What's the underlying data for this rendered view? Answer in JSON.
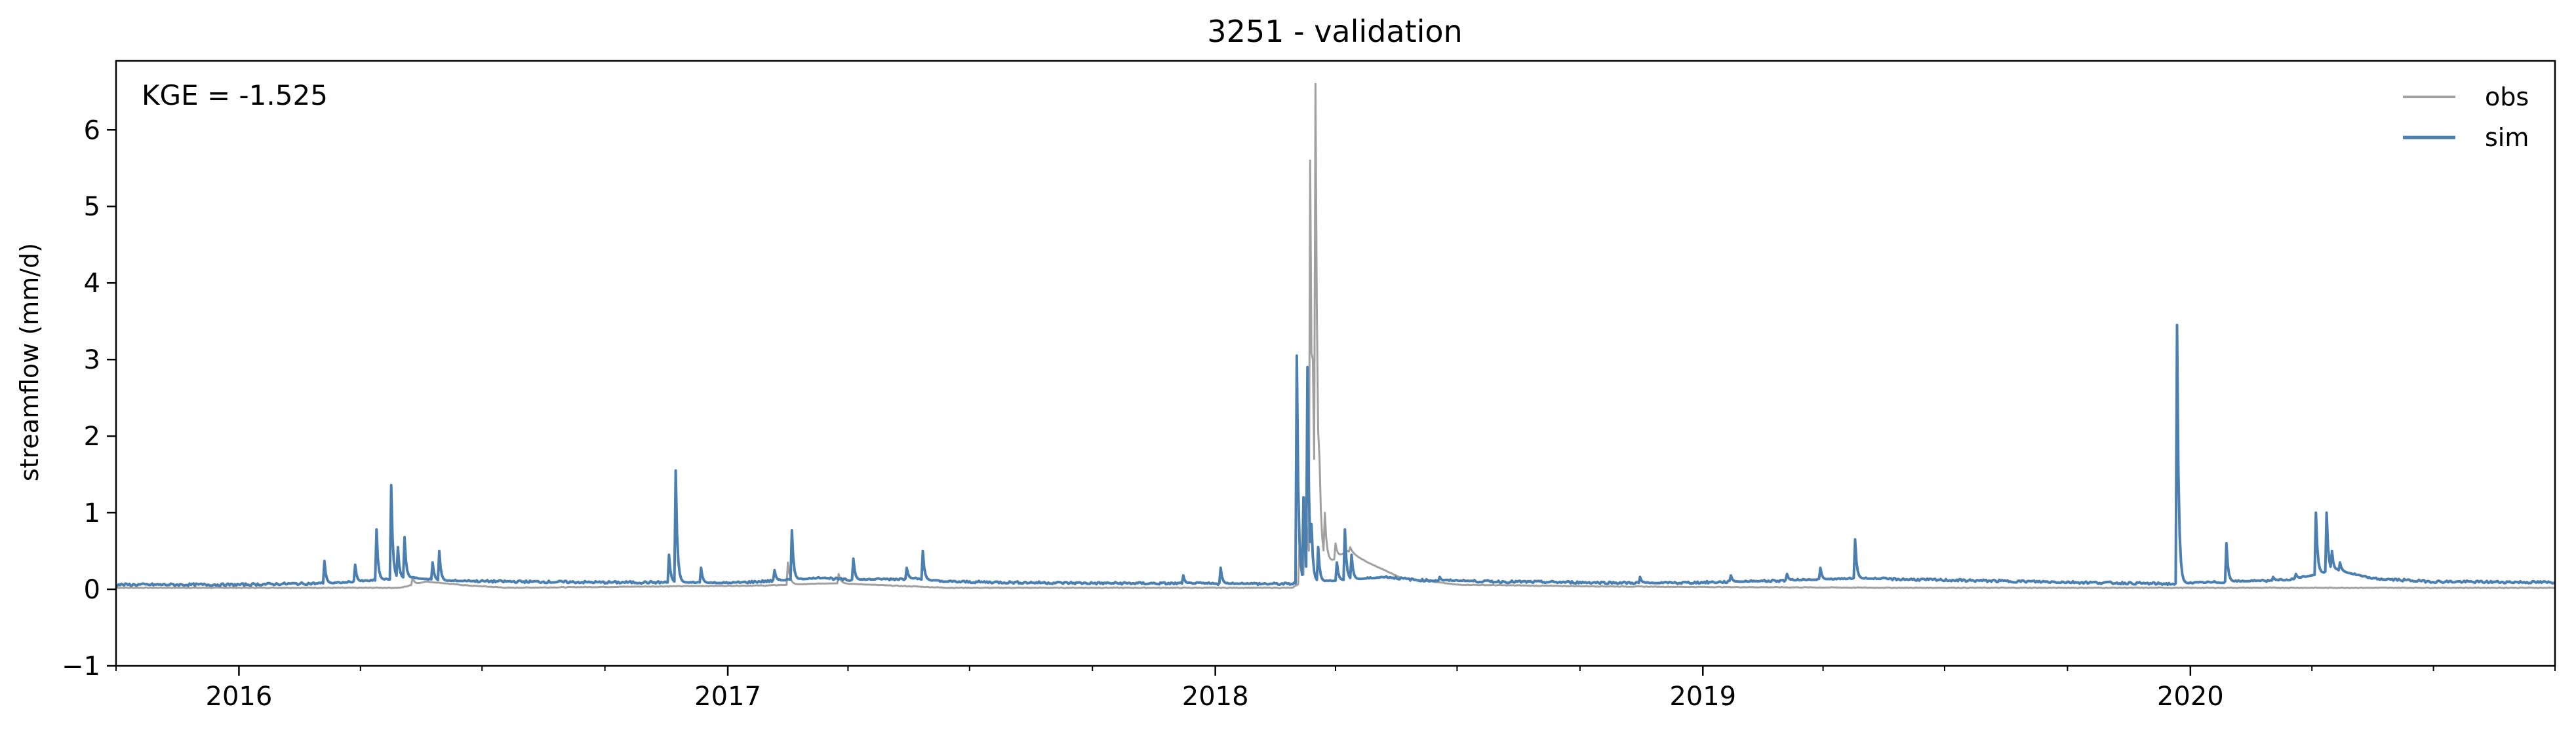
{
  "chart_data": {
    "type": "line",
    "title": "3251 - validation",
    "xlabel": "",
    "ylabel": "streamflow (mm/d)",
    "annotation": "KGE = -1.525",
    "x_range": [
      "2015-10-01",
      "2020-09-30"
    ],
    "ylim": [
      -1,
      6.9
    ],
    "y_ticks": [
      -1,
      0,
      1,
      2,
      3,
      4,
      5,
      6
    ],
    "x_tick_labels": [
      "2016",
      "2017",
      "2018",
      "2019",
      "2020"
    ],
    "x_major_ticks": [
      "2016-01-01",
      "2017-01-01",
      "2018-01-01",
      "2019-01-01",
      "2020-01-01"
    ],
    "x_minor_ticks": [
      "2015-10-01",
      "2016-04-01",
      "2016-07-01",
      "2016-10-01",
      "2017-04-01",
      "2017-07-01",
      "2017-10-01",
      "2018-04-01",
      "2018-07-01",
      "2018-10-01",
      "2019-04-01",
      "2019-07-01",
      "2019-10-01",
      "2020-04-01",
      "2020-07-01",
      "2020-09-30"
    ],
    "grid": false,
    "legend_position": "top-right",
    "series": [
      {
        "name": "obs",
        "color": "#a0a0a0",
        "baseline": [
          [
            "2015-10-01",
            0.02
          ],
          [
            "2016-05-01",
            0.02
          ],
          [
            "2016-05-20",
            0.1
          ],
          [
            "2016-06-20",
            0.05
          ],
          [
            "2016-07-20",
            0.02
          ],
          [
            "2017-02-01",
            0.05
          ],
          [
            "2017-03-20",
            0.08
          ],
          [
            "2017-05-01",
            0.05
          ],
          [
            "2017-06-15",
            0.02
          ],
          [
            "2018-02-28",
            0.02
          ],
          [
            "2018-04-10",
            0.5
          ],
          [
            "2018-04-25",
            0.35
          ],
          [
            "2018-05-20",
            0.15
          ],
          [
            "2018-07-01",
            0.06
          ],
          [
            "2018-10-01",
            0.04
          ],
          [
            "2019-01-01",
            0.03
          ],
          [
            "2019-06-01",
            0.02
          ],
          [
            "2020-09-30",
            0.02
          ]
        ],
        "peaks": [
          [
            "2016-05-10",
            0.15
          ],
          [
            "2017-02-15",
            0.35
          ],
          [
            "2017-03-25",
            0.2
          ],
          [
            "2018-03-05",
            0.6
          ],
          [
            "2018-03-09",
            1.2
          ],
          [
            "2018-03-11",
            0.8
          ],
          [
            "2018-03-13",
            5.6
          ],
          [
            "2018-03-15",
            3.0
          ],
          [
            "2018-03-17",
            6.6
          ],
          [
            "2018-03-20",
            1.7
          ],
          [
            "2018-03-24",
            1.0
          ],
          [
            "2018-04-01",
            0.6
          ],
          [
            "2018-04-12",
            0.55
          ]
        ]
      },
      {
        "name": "sim",
        "color": "#4a7fb0",
        "baseline": [
          [
            "2015-10-01",
            0.06
          ],
          [
            "2016-01-01",
            0.06
          ],
          [
            "2016-02-01",
            0.07
          ],
          [
            "2016-03-15",
            0.08
          ],
          [
            "2016-05-10",
            0.15
          ],
          [
            "2016-06-01",
            0.11
          ],
          [
            "2016-08-01",
            0.1
          ],
          [
            "2016-10-01",
            0.09
          ],
          [
            "2016-11-20",
            0.09
          ],
          [
            "2017-01-01",
            0.08
          ],
          [
            "2017-02-15",
            0.12
          ],
          [
            "2017-03-15",
            0.15
          ],
          [
            "2017-04-01",
            0.12
          ],
          [
            "2017-05-20",
            0.14
          ],
          [
            "2017-06-10",
            0.1
          ],
          [
            "2017-08-01",
            0.09
          ],
          [
            "2017-10-01",
            0.08
          ],
          [
            "2018-02-25",
            0.07
          ],
          [
            "2018-05-10",
            0.16
          ],
          [
            "2018-06-01",
            0.12
          ],
          [
            "2018-08-01",
            0.1
          ],
          [
            "2018-12-01",
            0.08
          ],
          [
            "2019-02-01",
            0.1
          ],
          [
            "2019-03-15",
            0.12
          ],
          [
            "2019-05-01",
            0.14
          ],
          [
            "2019-07-01",
            0.12
          ],
          [
            "2019-12-20",
            0.07
          ],
          [
            "2020-02-01",
            0.1
          ],
          [
            "2020-03-15",
            0.12
          ],
          [
            "2020-04-20",
            0.25
          ],
          [
            "2020-05-15",
            0.14
          ],
          [
            "2020-07-01",
            0.1
          ],
          [
            "2020-09-30",
            0.09
          ]
        ],
        "peaks": [
          [
            "2016-03-05",
            0.37
          ],
          [
            "2016-03-28",
            0.32
          ],
          [
            "2016-04-13",
            0.78
          ],
          [
            "2016-04-24",
            1.36
          ],
          [
            "2016-04-29",
            0.55
          ],
          [
            "2016-05-04",
            0.68
          ],
          [
            "2016-05-25",
            0.35
          ],
          [
            "2016-05-30",
            0.5
          ],
          [
            "2016-11-18",
            0.45
          ],
          [
            "2016-11-23",
            1.55
          ],
          [
            "2016-12-12",
            0.28
          ],
          [
            "2017-02-05",
            0.25
          ],
          [
            "2017-02-18",
            0.77
          ],
          [
            "2017-04-05",
            0.4
          ],
          [
            "2017-05-15",
            0.28
          ],
          [
            "2017-05-27",
            0.5
          ],
          [
            "2017-12-08",
            0.18
          ],
          [
            "2018-01-05",
            0.28
          ],
          [
            "2018-03-03",
            3.05
          ],
          [
            "2018-03-08",
            1.2
          ],
          [
            "2018-03-11",
            2.9
          ],
          [
            "2018-03-14",
            0.85
          ],
          [
            "2018-03-19",
            0.55
          ],
          [
            "2018-04-02",
            0.35
          ],
          [
            "2018-04-08",
            0.78
          ],
          [
            "2018-04-13",
            0.45
          ],
          [
            "2018-06-18",
            0.16
          ],
          [
            "2018-11-15",
            0.16
          ],
          [
            "2019-01-22",
            0.18
          ],
          [
            "2019-03-05",
            0.2
          ],
          [
            "2019-03-30",
            0.28
          ],
          [
            "2019-04-25",
            0.65
          ],
          [
            "2019-12-22",
            3.45
          ],
          [
            "2020-01-28",
            0.6
          ],
          [
            "2020-03-03",
            0.16
          ],
          [
            "2020-03-20",
            0.2
          ],
          [
            "2020-04-04",
            1.0
          ],
          [
            "2020-04-12",
            1.0
          ],
          [
            "2020-04-16",
            0.5
          ],
          [
            "2020-04-22",
            0.35
          ]
        ]
      }
    ]
  }
}
